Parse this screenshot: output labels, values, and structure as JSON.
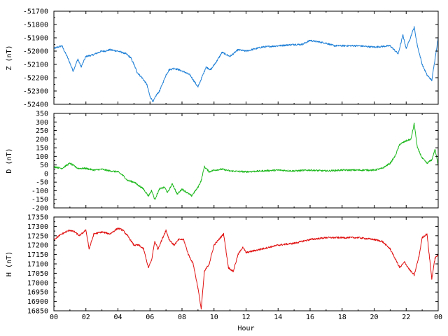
{
  "chart_data": [
    {
      "type": "line",
      "ylabel": "Z (nT)",
      "ylim": [
        -52400,
        -51700
      ],
      "yticks": [
        -51700,
        -51800,
        -51900,
        -52000,
        -52100,
        -52200,
        -52300,
        -52400
      ],
      "xlim": [
        0,
        24
      ],
      "grid": false,
      "series": [
        {
          "color": "#1e7fd6",
          "x": [
            0,
            0.5,
            0.9,
            1.2,
            1.5,
            1.7,
            2.0,
            2.4,
            3.0,
            3.2,
            3.5,
            4.0,
            4.5,
            4.8,
            5.0,
            5.2,
            5.5,
            5.8,
            6.0,
            6.2,
            6.4,
            6.6,
            7.0,
            7.2,
            7.5,
            7.8,
            8.2,
            8.5,
            9.0,
            9.5,
            9.8,
            10.2,
            10.5,
            11.0,
            11.5,
            12.0,
            13.0,
            14.0,
            15.0,
            15.5,
            16.0,
            16.5,
            17.0,
            17.5,
            18.0,
            19.0,
            20.0,
            21.0,
            21.5,
            21.8,
            22.0,
            22.2,
            22.5,
            22.7,
            23.0,
            23.3,
            23.6,
            23.8,
            24.0
          ],
          "values": [
            -51980,
            -51960,
            -52060,
            -52150,
            -52060,
            -52120,
            -52040,
            -52030,
            -52000,
            -52000,
            -51990,
            -52000,
            -52020,
            -52050,
            -52100,
            -52160,
            -52200,
            -52250,
            -52340,
            -52380,
            -52330,
            -52300,
            -52180,
            -52140,
            -52130,
            -52140,
            -52160,
            -52180,
            -52270,
            -52120,
            -52140,
            -52070,
            -52010,
            -52040,
            -51990,
            -52000,
            -51970,
            -51960,
            -51950,
            -51950,
            -51920,
            -51930,
            -51940,
            -51960,
            -51960,
            -51960,
            -51970,
            -51960,
            -52020,
            -51880,
            -51980,
            -51920,
            -51820,
            -51960,
            -52100,
            -52180,
            -52220,
            -52060,
            -51900
          ]
        }
      ]
    },
    {
      "type": "line",
      "ylabel": "D (nT)",
      "ylim": [
        -200,
        350
      ],
      "yticks": [
        350,
        300,
        250,
        200,
        150,
        100,
        50,
        0,
        -50,
        -100,
        -150,
        -200
      ],
      "xlim": [
        0,
        24
      ],
      "grid": false,
      "series": [
        {
          "color": "#1fb91f",
          "x": [
            0,
            0.5,
            1.0,
            1.5,
            2.0,
            2.5,
            3.0,
            3.5,
            4.0,
            4.3,
            4.6,
            5.0,
            5.3,
            5.6,
            5.9,
            6.1,
            6.3,
            6.6,
            6.9,
            7.1,
            7.4,
            7.7,
            8.0,
            8.3,
            8.6,
            9.0,
            9.2,
            9.4,
            9.7,
            10.0,
            10.5,
            11.0,
            12.0,
            13.0,
            14.0,
            15.0,
            16.0,
            17.0,
            18.0,
            19.0,
            20.0,
            20.5,
            21.0,
            21.3,
            21.6,
            22.0,
            22.3,
            22.5,
            22.7,
            23.0,
            23.3,
            23.6,
            23.8,
            24.0
          ],
          "values": [
            40,
            30,
            60,
            30,
            30,
            20,
            25,
            15,
            10,
            -10,
            -40,
            -50,
            -70,
            -90,
            -130,
            -100,
            -150,
            -90,
            -80,
            -110,
            -60,
            -120,
            -90,
            -110,
            -130,
            -80,
            -40,
            40,
            10,
            20,
            25,
            15,
            10,
            15,
            20,
            15,
            20,
            15,
            20,
            20,
            20,
            30,
            60,
            100,
            170,
            190,
            200,
            290,
            150,
            90,
            60,
            80,
            140,
            50
          ]
        }
      ]
    },
    {
      "type": "line",
      "ylabel": "H (nT)",
      "xlabel": "Hour",
      "ylim": [
        16850,
        17350
      ],
      "yticks": [
        17350,
        17300,
        17250,
        17200,
        17150,
        17100,
        17050,
        17000,
        16950,
        16900,
        16850
      ],
      "xlim": [
        0,
        24
      ],
      "xticks": [
        "00",
        "02",
        "04",
        "06",
        "08",
        "10",
        "12",
        "14",
        "16",
        "18",
        "20",
        "22",
        "00"
      ],
      "grid": false,
      "series": [
        {
          "color": "#e01010",
          "x": [
            0,
            0.5,
            1.0,
            1.3,
            1.6,
            2.0,
            2.2,
            2.5,
            3.0,
            3.5,
            4.0,
            4.3,
            4.6,
            5.0,
            5.3,
            5.6,
            5.9,
            6.1,
            6.3,
            6.5,
            6.8,
            7.0,
            7.2,
            7.5,
            7.8,
            8.1,
            8.4,
            8.7,
            9.0,
            9.2,
            9.4,
            9.7,
            10.0,
            10.3,
            10.6,
            10.9,
            11.2,
            11.5,
            11.8,
            12.0,
            13.0,
            14.0,
            15.0,
            16.0,
            17.0,
            18.0,
            19.0,
            20.0,
            20.5,
            21.0,
            21.3,
            21.6,
            21.9,
            22.2,
            22.5,
            22.8,
            23.0,
            23.3,
            23.6,
            23.8,
            24.0
          ],
          "values": [
            17230,
            17260,
            17280,
            17270,
            17250,
            17280,
            17180,
            17260,
            17270,
            17260,
            17290,
            17280,
            17250,
            17200,
            17200,
            17180,
            17080,
            17120,
            17220,
            17180,
            17240,
            17280,
            17230,
            17200,
            17230,
            17230,
            17150,
            17100,
            16970,
            16860,
            17060,
            17100,
            17200,
            17230,
            17260,
            17080,
            17060,
            17150,
            17190,
            17160,
            17180,
            17200,
            17210,
            17230,
            17240,
            17240,
            17240,
            17230,
            17220,
            17180,
            17130,
            17080,
            17110,
            17070,
            17040,
            17140,
            17240,
            17260,
            17020,
            17130,
            17150
          ]
        }
      ]
    }
  ]
}
